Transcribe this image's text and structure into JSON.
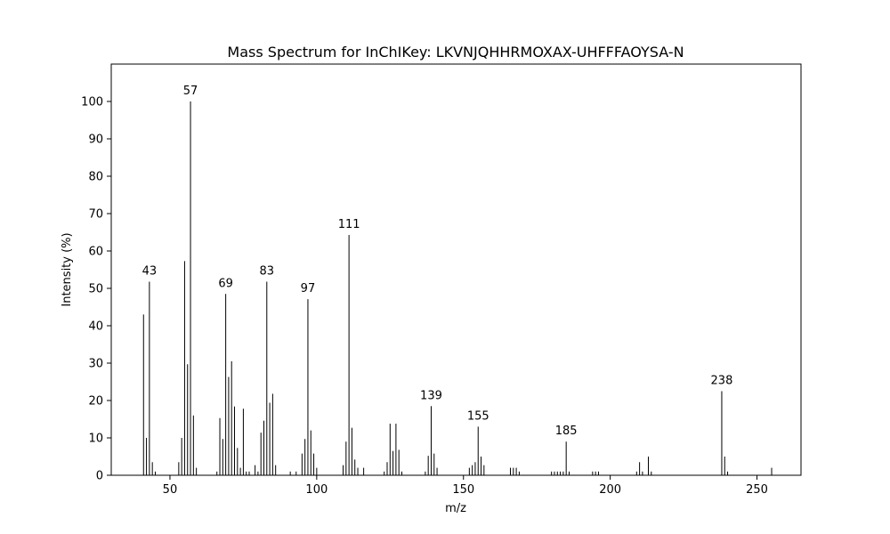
{
  "chart_data": {
    "type": "bar",
    "title": "Mass Spectrum for InChIKey: LKVNJQHHRMOXAX-UHFFFAOYSA-N",
    "xlabel": "m/z",
    "ylabel": "Intensity (%)",
    "xlim": [
      30,
      265
    ],
    "ylim": [
      0,
      110
    ],
    "xticks": [
      50,
      100,
      150,
      200,
      250
    ],
    "yticks": [
      0,
      10,
      20,
      30,
      40,
      50,
      60,
      70,
      80,
      90,
      100
    ],
    "bar_color": "#000000",
    "grid": false,
    "peaks": [
      {
        "x": 41,
        "y": 43
      },
      {
        "x": 42,
        "y": 10
      },
      {
        "x": 43,
        "y": 51.8
      },
      {
        "x": 44,
        "y": 3.5
      },
      {
        "x": 45,
        "y": 1
      },
      {
        "x": 53,
        "y": 3.5
      },
      {
        "x": 54,
        "y": 10
      },
      {
        "x": 55,
        "y": 57.3
      },
      {
        "x": 56,
        "y": 29.7
      },
      {
        "x": 57,
        "y": 100
      },
      {
        "x": 58,
        "y": 16
      },
      {
        "x": 59,
        "y": 2
      },
      {
        "x": 66,
        "y": 1
      },
      {
        "x": 67,
        "y": 15.3
      },
      {
        "x": 68,
        "y": 9.7
      },
      {
        "x": 69,
        "y": 48.5
      },
      {
        "x": 70,
        "y": 26.3
      },
      {
        "x": 71,
        "y": 30.5
      },
      {
        "x": 72,
        "y": 18.4
      },
      {
        "x": 73,
        "y": 7.3
      },
      {
        "x": 74,
        "y": 2
      },
      {
        "x": 75,
        "y": 17.8
      },
      {
        "x": 76,
        "y": 1
      },
      {
        "x": 77,
        "y": 1
      },
      {
        "x": 79,
        "y": 2.7
      },
      {
        "x": 80,
        "y": 1
      },
      {
        "x": 81,
        "y": 11.4
      },
      {
        "x": 82,
        "y": 14.6
      },
      {
        "x": 83,
        "y": 51.8
      },
      {
        "x": 84,
        "y": 19.4
      },
      {
        "x": 85,
        "y": 21.8
      },
      {
        "x": 86,
        "y": 2.7
      },
      {
        "x": 91,
        "y": 1
      },
      {
        "x": 93,
        "y": 1
      },
      {
        "x": 95,
        "y": 5.8
      },
      {
        "x": 96,
        "y": 9.7
      },
      {
        "x": 97,
        "y": 47.1
      },
      {
        "x": 98,
        "y": 12
      },
      {
        "x": 99,
        "y": 5.8
      },
      {
        "x": 100,
        "y": 2
      },
      {
        "x": 109,
        "y": 2.7
      },
      {
        "x": 110,
        "y": 9
      },
      {
        "x": 111,
        "y": 64.3
      },
      {
        "x": 112,
        "y": 12.7
      },
      {
        "x": 113,
        "y": 4.2
      },
      {
        "x": 114,
        "y": 2
      },
      {
        "x": 116,
        "y": 2
      },
      {
        "x": 123,
        "y": 1
      },
      {
        "x": 124,
        "y": 3.5
      },
      {
        "x": 125,
        "y": 13.8
      },
      {
        "x": 126,
        "y": 6.5
      },
      {
        "x": 127,
        "y": 13.8
      },
      {
        "x": 128,
        "y": 6.8
      },
      {
        "x": 129,
        "y": 1
      },
      {
        "x": 137,
        "y": 1
      },
      {
        "x": 138,
        "y": 5.2
      },
      {
        "x": 139,
        "y": 18.5
      },
      {
        "x": 140,
        "y": 5.8
      },
      {
        "x": 141,
        "y": 2
      },
      {
        "x": 152,
        "y": 2
      },
      {
        "x": 153,
        "y": 2.7
      },
      {
        "x": 154,
        "y": 3.5
      },
      {
        "x": 155,
        "y": 13
      },
      {
        "x": 156,
        "y": 5
      },
      {
        "x": 157,
        "y": 2.7
      },
      {
        "x": 166,
        "y": 2
      },
      {
        "x": 167,
        "y": 2
      },
      {
        "x": 168,
        "y": 2
      },
      {
        "x": 169,
        "y": 1
      },
      {
        "x": 180,
        "y": 1
      },
      {
        "x": 181,
        "y": 1
      },
      {
        "x": 182,
        "y": 1
      },
      {
        "x": 183,
        "y": 1
      },
      {
        "x": 184,
        "y": 1
      },
      {
        "x": 185,
        "y": 9
      },
      {
        "x": 186,
        "y": 1
      },
      {
        "x": 194,
        "y": 1
      },
      {
        "x": 195,
        "y": 1
      },
      {
        "x": 196,
        "y": 1
      },
      {
        "x": 209,
        "y": 1
      },
      {
        "x": 210,
        "y": 3.5
      },
      {
        "x": 211,
        "y": 1
      },
      {
        "x": 213,
        "y": 5
      },
      {
        "x": 214,
        "y": 1
      },
      {
        "x": 238,
        "y": 22.5
      },
      {
        "x": 239,
        "y": 5
      },
      {
        "x": 240,
        "y": 1
      },
      {
        "x": 255,
        "y": 2
      }
    ],
    "labeled_peaks": [
      {
        "x": 43,
        "y": 51.8,
        "label": "43"
      },
      {
        "x": 57,
        "y": 100,
        "label": "57"
      },
      {
        "x": 69,
        "y": 48.5,
        "label": "69"
      },
      {
        "x": 83,
        "y": 51.8,
        "label": "83"
      },
      {
        "x": 97,
        "y": 47.1,
        "label": "97"
      },
      {
        "x": 111,
        "y": 64.3,
        "label": "111"
      },
      {
        "x": 139,
        "y": 18.5,
        "label": "139"
      },
      {
        "x": 155,
        "y": 13,
        "label": "155"
      },
      {
        "x": 185,
        "y": 9,
        "label": "185"
      },
      {
        "x": 238,
        "y": 22.5,
        "label": "238"
      }
    ]
  }
}
